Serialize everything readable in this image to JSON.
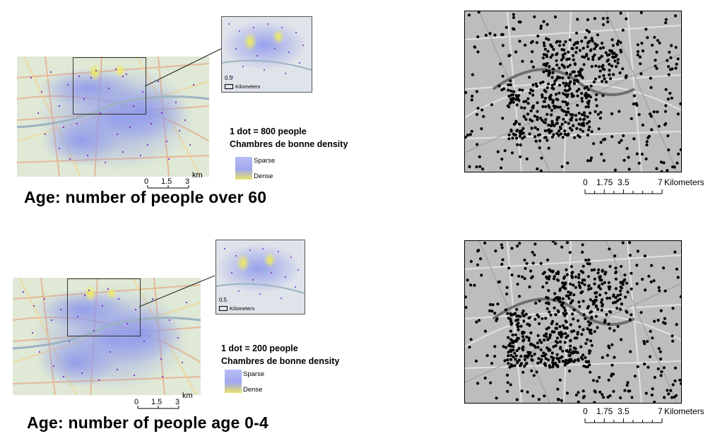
{
  "panels": [
    {
      "title": "Age: number of people over 60",
      "legend": {
        "dot_ratio": "1 dot = 800 people",
        "layer": "Chambres de bonne density",
        "sparse": "Sparse",
        "dense": "Dense"
      },
      "scale": {
        "ticks": [
          "0",
          "1.5",
          "3"
        ],
        "unit": "km"
      },
      "inset_scale": {
        "value": "0.5",
        "unit": "Kilometers"
      },
      "bw_scale": {
        "ticks": [
          "0",
          "1.75",
          "3.5",
          "7"
        ],
        "unit": "Kilometers"
      }
    },
    {
      "title": "Age: number of people age 0-4",
      "legend": {
        "dot_ratio": "1 dot = 200 people",
        "layer": "Chambres de bonne density",
        "sparse": "Sparse",
        "dense": "Dense"
      },
      "scale": {
        "ticks": [
          "0",
          "1.5",
          "3"
        ],
        "unit": "km"
      },
      "inset_scale": {
        "value": "0.5",
        "unit": "Kilometers"
      },
      "bw_scale": {
        "ticks": [
          "0",
          "1.75",
          "3.5",
          "7"
        ],
        "unit": "Kilometers"
      }
    }
  ],
  "colors": {
    "sparse": "#9fa6ee",
    "dense": "#e6e36a",
    "dots": "#7b22c7",
    "basemap": "#d9e8cf"
  }
}
